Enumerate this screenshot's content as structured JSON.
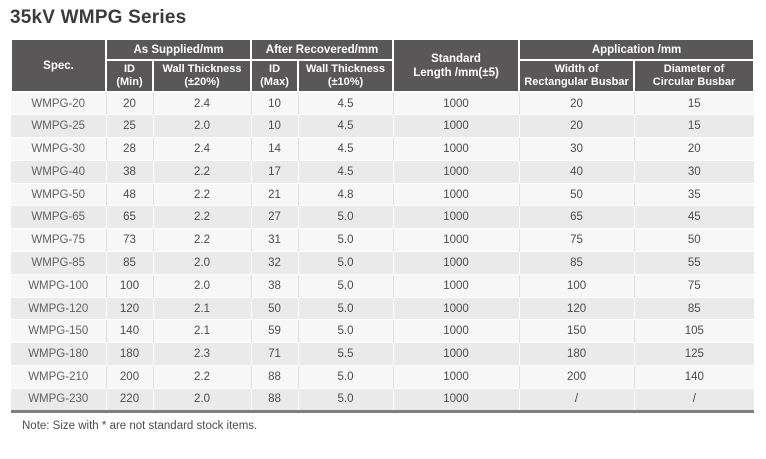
{
  "page": {
    "title": "35kV WMPG Series",
    "note": "Note: Size with * are not standard stock items."
  },
  "colors": {
    "header_bg": "#595757",
    "header_text": "#ffffff",
    "row_light": "#f7f7f7",
    "row_dark": "#eaeaea",
    "bottom_border": "#7e7e7e",
    "title_text": "#3b3b3b",
    "body_text": "#4c4c4c"
  },
  "table": {
    "header": {
      "spec": "Spec.",
      "as_supplied": "As Supplied/mm",
      "after_recovered": "After Recovered/mm",
      "id_min": "ID\n(Min)",
      "wall_20": "Wall Thickness\n(±20%)",
      "id_max": "ID\n(Max)",
      "wall_10": "Wall Thickness\n(±10%)",
      "standard_length": "Standard\nLength /mm(±5)",
      "application": "Application /mm",
      "width_rect": "Width of\nRectangular Busbar",
      "dia_circ": "Diameter of\nCircular Busbar"
    },
    "rows": [
      [
        "WMPG-20",
        "20",
        "2.4",
        "10",
        "4.5",
        "1000",
        "20",
        "15"
      ],
      [
        "WMPG-25",
        "25",
        "2.0",
        "10",
        "4.5",
        "1000",
        "20",
        "15"
      ],
      [
        "WMPG-30",
        "28",
        "2.4",
        "14",
        "4.5",
        "1000",
        "30",
        "20"
      ],
      [
        "WMPG-40",
        "38",
        "2.2",
        "17",
        "4.5",
        "1000",
        "40",
        "30"
      ],
      [
        "WMPG-50",
        "48",
        "2.2",
        "21",
        "4.8",
        "1000",
        "50",
        "35"
      ],
      [
        "WMPG-65",
        "65",
        "2.2",
        "27",
        "5.0",
        "1000",
        "65",
        "45"
      ],
      [
        "WMPG-75",
        "73",
        "2.2",
        "31",
        "5.0",
        "1000",
        "75",
        "50"
      ],
      [
        "WMPG-85",
        "85",
        "2.0",
        "32",
        "5.0",
        "1000",
        "85",
        "55"
      ],
      [
        "WMPG-100",
        "100",
        "2.0",
        "38",
        "5.0",
        "1000",
        "100",
        "75"
      ],
      [
        "WMPG-120",
        "120",
        "2.1",
        "50",
        "5.0",
        "1000",
        "120",
        "85"
      ],
      [
        "WMPG-150",
        "140",
        "2.1",
        "59",
        "5.0",
        "1000",
        "150",
        "105"
      ],
      [
        "WMPG-180",
        "180",
        "2.3",
        "71",
        "5.5",
        "1000",
        "180",
        "125"
      ],
      [
        "WMPG-210",
        "200",
        "2.2",
        "88",
        "5.0",
        "1000",
        "200",
        "140"
      ],
      [
        "WMPG-230",
        "220",
        "2.0",
        "88",
        "5.0",
        "1000",
        "/",
        "/"
      ]
    ]
  }
}
